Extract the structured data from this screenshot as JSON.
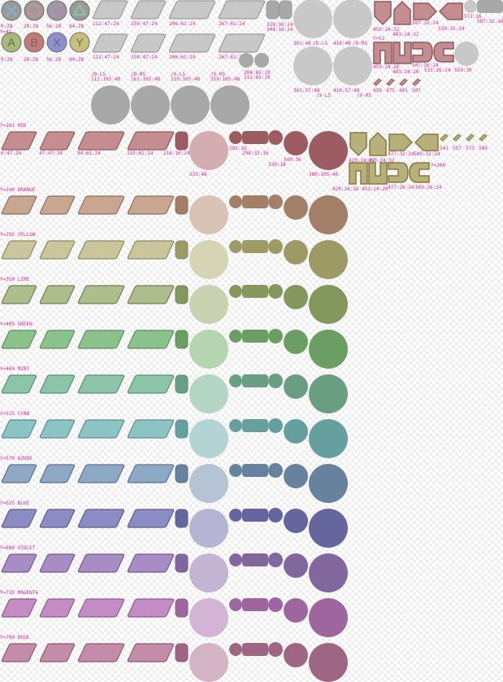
{
  "face_buttons": [
    {
      "symbol": "cross",
      "letter": "A",
      "top_label": "0:28",
      "bottom_label": "0:28",
      "side_label": "Y=41"
    },
    {
      "symbol": "circle",
      "letter": "B",
      "top_label": "28:28",
      "bottom_label": "28:28"
    },
    {
      "symbol": "square",
      "letter": "X",
      "top_label": "56:28",
      "bottom_label": "56:28"
    },
    {
      "symbol": "triangle",
      "letter": "Y",
      "top_label": "84:28",
      "bottom_label": "84:28"
    }
  ],
  "gray_palette": {
    "fill": "#c8c8c8",
    "stroke": "#9a9a9a",
    "dark": "#a8a8a8",
    "face_blue": "#8aaed0",
    "face_red": "#c88f95",
    "face_purple": "#b08bc4",
    "face_green": "#8fbf9f",
    "letter_green": "#a6b87a",
    "letter_red": "#c67a78",
    "letter_blue": "#8e8fd0",
    "letter_yellow": "#c8c07a"
  },
  "shoulder_labels_top": [
    "112:47:24",
    "159:47:24",
    "206:61:24",
    "267:61:24"
  ],
  "shoulder_labels_bottom": [
    "112:47:24",
    "159:47:24",
    "206:61:24",
    "267:61:24"
  ],
  "small_top_labels": [
    "328:16:24",
    "344:16:24"
  ],
  "stick_labels_top": [
    "361:48",
    "/D-LS",
    "410:48",
    "/D-RS"
  ],
  "dot_labels": [
    "284:65:19",
    "313:65:19"
  ],
  "stick_labels_mid": [
    "361:57:48",
    "/X-LS",
    "410:57:48",
    "/X-RS"
  ],
  "big_circle_labels": [
    {
      "title": "/D-LS",
      "coords": "112:105:48"
    },
    {
      "title": "/D-RS",
      "coords": "161:105:48"
    },
    {
      "title": "/X-LS",
      "coords": "210:105:48"
    },
    {
      "title": "/X-RS",
      "coords": "259:105:48"
    }
  ],
  "dpad_labels_top": [
    "459:24:32",
    "483:24:32",
    "507:32:24",
    "539:32:24",
    "571:16",
    "587:32:16"
  ],
  "dpad_side_label": "Y=51",
  "dpad_labels_mid": [
    "459:24:26",
    "483:24:26",
    "507:26:24",
    "533:26:24",
    "559:30"
  ],
  "mini_labels": [
    "459",
    "475",
    "491",
    "507"
  ],
  "red_row": {
    "title": "Y=161 RED",
    "fill": "#c48d90",
    "stroke": "#8e5b5e",
    "light": "#d4adb0",
    "dark": "#9c5c62",
    "shoulder_labels": [
      "0:47:24",
      "47:47:24",
      "94:61:24",
      "155:61:24"
    ],
    "small_labels": [
      "216:16:24",
      "282:16",
      "298:32:16"
    ],
    "circle_labels": [
      "233:48",
      "330:18",
      "349:30",
      "380:105:48"
    ],
    "dpad_labels_top": [
      "429:24:32",
      "453:24:32",
      "477:32:24",
      "509:32:24"
    ],
    "dpad_mini": [
      "541",
      "557",
      "573",
      "589"
    ],
    "side_label": "Y=200",
    "dpad_labels_bottom": [
      "429:24:26",
      "453:24:26",
      "477:26:24",
      "503:26:24"
    ],
    "yellow": "#b8b07a",
    "yellow_stroke": "#857a3f"
  },
  "color_rows": [
    {
      "title": "Y=240 ORANGE",
      "fill": "#c8a690",
      "stroke": "#8e6e5c",
      "light": "#d8c3b4",
      "dark": "#a37f67"
    },
    {
      "title": "Y=295 YELLOW",
      "fill": "#c8c69a",
      "stroke": "#8c8a5e",
      "light": "#d6d4b4",
      "dark": "#9e9a66"
    },
    {
      "title": "Y=350 LIME",
      "fill": "#aebd8c",
      "stroke": "#6e8050",
      "light": "#c8d2b0",
      "dark": "#84985e"
    },
    {
      "title": "Y=405 GREEN",
      "fill": "#8cc28c",
      "stroke": "#5b8e5b",
      "light": "#b5d4b0",
      "dark": "#6b9e63"
    },
    {
      "title": "Y=460 MINT",
      "fill": "#8cc4a8",
      "stroke": "#5b8e76",
      "light": "#b4d4c4",
      "dark": "#6a9e82"
    },
    {
      "title": "Y=515 CYAN",
      "fill": "#8cc4c4",
      "stroke": "#5b8e8e",
      "light": "#b4d4d4",
      "dark": "#66a09e"
    },
    {
      "title": "Y=570 AZURE",
      "fill": "#8ca8c4",
      "stroke": "#5b728e",
      "light": "#b4c4d4",
      "dark": "#66829e"
    },
    {
      "title": "Y=625 BLUE",
      "fill": "#8c8cc4",
      "stroke": "#5b5b8e",
      "light": "#b4b4d4",
      "dark": "#66669e"
    },
    {
      "title": "Y=680 VIOLET",
      "fill": "#a88cc4",
      "stroke": "#725b8e",
      "light": "#c4b4d4",
      "dark": "#82669e"
    },
    {
      "title": "Y=735 MAGENTA",
      "fill": "#c48cc4",
      "stroke": "#8e5b8e",
      "light": "#d4b4d4",
      "dark": "#9e669e"
    },
    {
      "title": "Y=790 ROSE",
      "fill": "#c48ca8",
      "stroke": "#8e5b72",
      "light": "#d4b4c4",
      "dark": "#9e6682"
    }
  ]
}
